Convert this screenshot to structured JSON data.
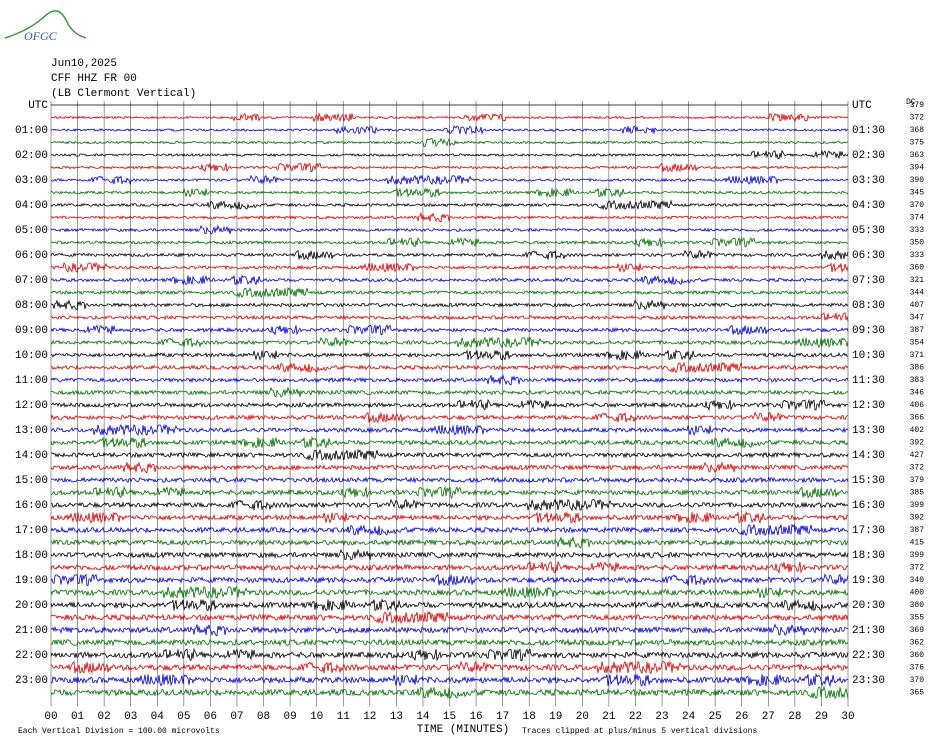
{
  "header": {
    "logo": "OFGC",
    "date": "Jun10,2025",
    "station": "CFF HHZ FR 00",
    "location": "(LB Clermont Vertical)"
  },
  "left_labels": [
    "UTC",
    "01:00",
    "02:00",
    "03:00",
    "04:00",
    "05:00",
    "06:00",
    "07:00",
    "08:00",
    "09:00",
    "10:00",
    "11:00",
    "12:00",
    "13:00",
    "14:00",
    "15:00",
    "16:00",
    "17:00",
    "18:00",
    "19:00",
    "20:00",
    "21:00",
    "22:00",
    "23:00"
  ],
  "right_labels": [
    "UTC",
    "01:30",
    "02:30",
    "03:30",
    "04:30",
    "05:30",
    "06:30",
    "07:30",
    "08:30",
    "09:30",
    "10:30",
    "11:30",
    "12:30",
    "13:30",
    "14:30",
    "15:30",
    "16:30",
    "17:30",
    "18:30",
    "19:30",
    "20:30",
    "21:30",
    "22:30",
    "23:30"
  ],
  "dc_label": "DC",
  "dc_values": [
    379,
    372,
    368,
    375,
    363,
    394,
    390,
    345,
    370,
    374,
    333,
    350,
    333,
    360,
    321,
    344,
    407,
    347,
    387,
    354,
    371,
    386,
    383,
    346,
    406,
    366,
    402,
    392,
    427,
    372,
    379,
    385,
    399,
    392,
    387,
    415,
    399,
    372,
    340,
    400,
    380,
    355,
    369,
    362,
    360,
    376,
    370,
    365
  ],
  "x_ticks": [
    "00",
    "01",
    "02",
    "03",
    "04",
    "05",
    "06",
    "07",
    "08",
    "09",
    "10",
    "11",
    "12",
    "13",
    "14",
    "15",
    "16",
    "17",
    "18",
    "19",
    "20",
    "21",
    "22",
    "23",
    "24",
    "25",
    "26",
    "27",
    "28",
    "29",
    "30"
  ],
  "footer": {
    "scale": "Each Vertical Division =  100.00 microvolts",
    "axis_title": "TIME (MINUTES)",
    "clipping": "Traces clipped at plus/minus 5 vertical divisions"
  },
  "trace_colors": [
    "#000000",
    "#e00000",
    "#0000e0",
    "#007000"
  ]
}
